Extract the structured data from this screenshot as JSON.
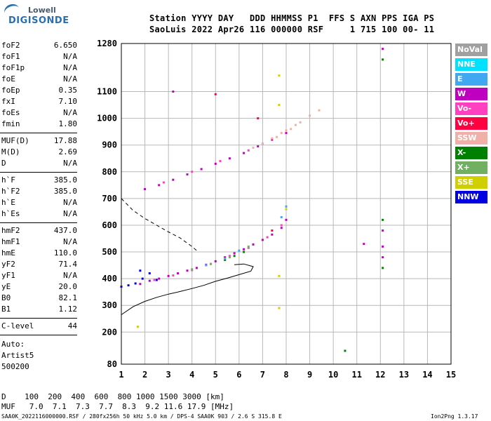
{
  "logo": {
    "top": "Lowell",
    "bottom": "DIGISONDE"
  },
  "header": {
    "line1": "Station YYYY DAY   DDD HHMMSS P1  FFS S AXN PPS IGA PS",
    "line2": "SaoLuis 2022 Apr26 116 000000 RSF     1 715 100 00- 11"
  },
  "params_1": [
    {
      "k": "foF2",
      "v": "6.650"
    },
    {
      "k": "foF1",
      "v": "N/A"
    },
    {
      "k": "foF1p",
      "v": "N/A"
    },
    {
      "k": "foE",
      "v": "N/A"
    },
    {
      "k": "foEp",
      "v": "0.35"
    },
    {
      "k": "fxI",
      "v": "7.10"
    },
    {
      "k": "foEs",
      "v": "N/A"
    },
    {
      "k": "fmin",
      "v": "1.80"
    }
  ],
  "params_2": [
    {
      "k": "MUF(D)",
      "v": "17.88"
    },
    {
      "k": "M(D)",
      "v": "2.69"
    },
    {
      "k": "D",
      "v": "N/A"
    }
  ],
  "params_3": [
    {
      "k": "h`F",
      "v": "385.0"
    },
    {
      "k": "h`F2",
      "v": "385.0"
    },
    {
      "k": "h`E",
      "v": "N/A"
    },
    {
      "k": "h`Es",
      "v": "N/A"
    }
  ],
  "params_4": [
    {
      "k": "hmF2",
      "v": "437.0"
    },
    {
      "k": "hmF1",
      "v": "N/A"
    },
    {
      "k": "hmE",
      "v": "110.0"
    },
    {
      "k": "yF2",
      "v": "71.4"
    },
    {
      "k": "yF1",
      "v": "N/A"
    },
    {
      "k": "yE",
      "v": "20.0"
    },
    {
      "k": "B0",
      "v": "82.1"
    },
    {
      "k": "B1",
      "v": "1.12"
    }
  ],
  "clevel": {
    "k": "C-level",
    "v": "44"
  },
  "auto": [
    "Auto:",
    "Artist5",
    "500200"
  ],
  "legend": [
    {
      "label": "NoVal",
      "color": "#a0a0a0"
    },
    {
      "label": "NNE",
      "color": "#00e0ff"
    },
    {
      "label": "E",
      "color": "#40a8f0"
    },
    {
      "label": "W",
      "color": "#c000c0"
    },
    {
      "label": "Vo-",
      "color": "#ff40c0"
    },
    {
      "label": "Vo+",
      "color": "#ff0040"
    },
    {
      "label": "SSW",
      "color": "#f0b0a8"
    },
    {
      "label": "X-",
      "color": "#008000"
    },
    {
      "label": "X+",
      "color": "#70b060"
    },
    {
      "label": "SSE",
      "color": "#d0d000"
    },
    {
      "label": "NNW",
      "color": "#0000e0"
    }
  ],
  "footer": {
    "d_row": "D    100  200  400  600  800 1000 1500 3000 [km]",
    "muf_row": "MUF   7.0  7.1  7.3  7.7  8.3  9.2 11.6 17.9 [MHz]",
    "file_line": "SAA0K_2022116000000.RSF / 280fx256h 50 kHz 5.0 km / DPS-4 SAA0K 903 / 2.6 S 315.8 E",
    "version": "Ion2Png 1.3.17"
  },
  "chart_data": {
    "type": "scatter",
    "title": "",
    "xlabel": "",
    "ylabel": "",
    "xlim": [
      1,
      15
    ],
    "ylim": [
      80,
      1280
    ],
    "x_ticks": [
      1,
      2,
      3,
      4,
      5,
      6,
      7,
      8,
      9,
      10,
      11,
      12,
      13,
      14,
      15
    ],
    "y_ticks": [
      80,
      200,
      300,
      400,
      500,
      600,
      700,
      800,
      900,
      1000,
      1100,
      1280
    ],
    "grid": true,
    "legend_position": "right",
    "series": [
      {
        "name": "W",
        "color": "#c000c0",
        "points": [
          [
            1.8,
            380
          ],
          [
            2.2,
            392
          ],
          [
            2.6,
            400
          ],
          [
            3.0,
            410
          ],
          [
            3.4,
            420
          ],
          [
            3.8,
            430
          ],
          [
            4.2,
            440
          ],
          [
            4.6,
            452
          ],
          [
            5.0,
            465
          ],
          [
            5.4,
            480
          ],
          [
            5.8,
            495
          ],
          [
            6.2,
            510
          ],
          [
            6.6,
            528
          ],
          [
            7.0,
            545
          ],
          [
            7.4,
            565
          ],
          [
            7.8,
            590
          ],
          [
            8.0,
            620
          ],
          [
            2.0,
            735
          ],
          [
            2.6,
            750
          ],
          [
            3.2,
            770
          ],
          [
            3.8,
            790
          ],
          [
            4.4,
            810
          ],
          [
            5.0,
            830
          ],
          [
            5.6,
            850
          ],
          [
            6.2,
            870
          ],
          [
            6.8,
            895
          ],
          [
            7.4,
            920
          ],
          [
            8.0,
            945
          ],
          [
            12.1,
            1260
          ],
          [
            12.1,
            580
          ],
          [
            12.1,
            520
          ],
          [
            12.1,
            480
          ],
          [
            11.3,
            530
          ],
          [
            3.2,
            1100
          ]
        ]
      },
      {
        "name": "Vo-",
        "color": "#ff40c0",
        "points": [
          [
            2.4,
            395
          ],
          [
            3.2,
            412
          ],
          [
            4.0,
            432
          ],
          [
            4.8,
            455
          ],
          [
            5.6,
            485
          ],
          [
            6.4,
            515
          ],
          [
            7.2,
            555
          ],
          [
            7.8,
            600
          ],
          [
            2.8,
            760
          ],
          [
            4.0,
            800
          ],
          [
            5.2,
            840
          ],
          [
            6.4,
            880
          ],
          [
            7.0,
            905
          ]
        ]
      },
      {
        "name": "SSW",
        "color": "#f0b0a8",
        "points": [
          [
            6.6,
            890
          ],
          [
            7.0,
            905
          ],
          [
            7.4,
            925
          ],
          [
            7.8,
            945
          ],
          [
            8.2,
            960
          ],
          [
            8.6,
            985
          ],
          [
            9.0,
            1010
          ],
          [
            9.4,
            1030
          ],
          [
            7.6,
            930
          ],
          [
            8.0,
            955
          ],
          [
            8.4,
            975
          ]
        ]
      },
      {
        "name": "NNW",
        "color": "#0000e0",
        "points": [
          [
            1.0,
            370
          ],
          [
            1.3,
            375
          ],
          [
            1.6,
            382
          ],
          [
            1.9,
            400
          ],
          [
            2.2,
            420
          ],
          [
            2.5,
            395
          ],
          [
            1.8,
            430
          ]
        ]
      },
      {
        "name": "X-",
        "color": "#008000",
        "points": [
          [
            5.4,
            470
          ],
          [
            5.8,
            485
          ],
          [
            6.2,
            500
          ],
          [
            12.1,
            1220
          ],
          [
            12.1,
            620
          ],
          [
            12.1,
            440
          ],
          [
            10.5,
            130
          ]
        ]
      },
      {
        "name": "SSE",
        "color": "#d0d000",
        "points": [
          [
            7.7,
            1160
          ],
          [
            7.7,
            1050
          ],
          [
            7.7,
            410
          ],
          [
            7.7,
            290
          ],
          [
            8.0,
            660
          ],
          [
            1.7,
            220
          ]
        ]
      },
      {
        "name": "E",
        "color": "#40a8f0",
        "points": [
          [
            4.6,
            450
          ],
          [
            5.4,
            475
          ],
          [
            6.0,
            505
          ],
          [
            7.8,
            630
          ],
          [
            8.0,
            670
          ]
        ]
      },
      {
        "name": "X+",
        "color": "#70b060",
        "points": [
          [
            4.0,
            435
          ],
          [
            4.8,
            455
          ],
          [
            5.6,
            480
          ],
          [
            6.4,
            520
          ]
        ]
      },
      {
        "name": "Vo+",
        "color": "#ff0040",
        "points": [
          [
            6.8,
            1000
          ],
          [
            7.4,
            580
          ],
          [
            5.0,
            1090
          ]
        ]
      }
    ],
    "lines": [
      {
        "style": "solid",
        "points": [
          [
            1.0,
            265
          ],
          [
            1.5,
            295
          ],
          [
            2.0,
            315
          ],
          [
            2.5,
            330
          ],
          [
            3.0,
            342
          ],
          [
            3.5,
            352
          ],
          [
            4.0,
            363
          ],
          [
            4.5,
            375
          ],
          [
            5.0,
            390
          ],
          [
            5.5,
            402
          ],
          [
            6.0,
            415
          ],
          [
            6.5,
            428
          ],
          [
            6.6,
            445
          ],
          [
            6.2,
            455
          ],
          [
            5.8,
            452
          ]
        ]
      },
      {
        "style": "dashed",
        "points": [
          [
            1.0,
            700
          ],
          [
            1.5,
            655
          ],
          [
            2.0,
            625
          ],
          [
            2.5,
            600
          ],
          [
            3.0,
            575
          ],
          [
            3.5,
            552
          ],
          [
            4.0,
            520
          ],
          [
            4.2,
            505
          ]
        ]
      }
    ]
  }
}
